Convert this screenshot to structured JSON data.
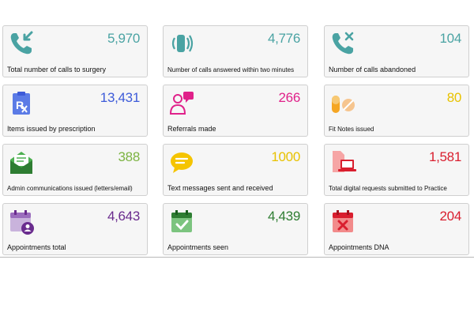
{
  "colors": {
    "teal": "#4aa3a3",
    "blue": "#3d5bd9",
    "magenta": "#e0218a",
    "yellow": "#e8c200",
    "green": "#7cb342",
    "red": "#d91e2e",
    "purple": "#6a2c8e",
    "dark_green": "#2e7d32"
  },
  "cards": [
    {
      "value": "5,970",
      "label": "Total number of calls to surgery",
      "icon": "incoming-call-icon",
      "color": "teal"
    },
    {
      "value": "4,776",
      "label": "Number of calls answered within two minutes",
      "icon": "ringing-phone-icon",
      "color": "teal"
    },
    {
      "value": "104",
      "label": "Number of calls abandoned",
      "icon": "abandoned-call-icon",
      "color": "teal"
    },
    {
      "value": "13,431",
      "label": "Items issued by prescription",
      "icon": "prescription-icon",
      "color": "blue"
    },
    {
      "value": "266",
      "label": "Referrals made",
      "icon": "doctor-referral-icon",
      "color": "magenta"
    },
    {
      "value": "80",
      "label": "Fit Notes issued",
      "icon": "pills-icon",
      "color": "yellow"
    },
    {
      "value": "388",
      "label": "Admin communications issued (letters/email)",
      "icon": "envelope-icon",
      "color": "green"
    },
    {
      "value": "1000",
      "label": "Text messages sent and received",
      "icon": "speech-bubble-icon",
      "color": "yellow"
    },
    {
      "value": "1,581",
      "label": "Total digital requests submitted to Practice",
      "icon": "laptop-document-icon",
      "color": "red"
    },
    {
      "value": "4,643",
      "label": "Appointments total",
      "icon": "calendar-user-icon",
      "color": "purple"
    },
    {
      "value": "4,439",
      "label": "Appointments seen",
      "icon": "calendar-check-icon",
      "color": "dark_green"
    },
    {
      "value": "204",
      "label": "Appointments DNA",
      "icon": "calendar-cross-icon",
      "color": "red"
    }
  ]
}
